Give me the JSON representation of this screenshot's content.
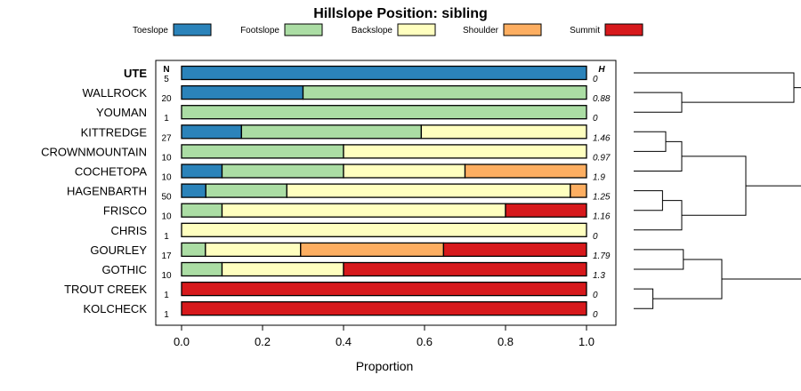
{
  "chart_data": {
    "type": "bar",
    "orientation": "horizontal",
    "stacked": true,
    "title": "Hillslope Position: sibling",
    "xlabel": "Proportion",
    "xlim": [
      0,
      1
    ],
    "x_ticks": [
      "0.0",
      "0.2",
      "0.4",
      "0.6",
      "0.8",
      "1.0"
    ],
    "n_header": "N",
    "h_header": "H",
    "legend_position": "top",
    "series": [
      {
        "name": "Toeslope",
        "color": "#2B83BA"
      },
      {
        "name": "Footslope",
        "color": "#ABDDA4"
      },
      {
        "name": "Backslope",
        "color": "#FFFFBF"
      },
      {
        "name": "Shoulder",
        "color": "#FDAE61"
      },
      {
        "name": "Summit",
        "color": "#D7191C"
      }
    ],
    "rows": [
      {
        "label": "UTE",
        "bold": true,
        "n": "5",
        "h": "0",
        "values": [
          1.0,
          0,
          0,
          0,
          0
        ]
      },
      {
        "label": "WALLROCK",
        "n": "20",
        "h": "0.88",
        "values": [
          0.3,
          0.7,
          0,
          0,
          0
        ]
      },
      {
        "label": "YOUMAN",
        "n": "1",
        "h": "0",
        "values": [
          0,
          1.0,
          0,
          0,
          0
        ]
      },
      {
        "label": "KITTREDGE",
        "n": "27",
        "h": "1.46",
        "values": [
          0.148,
          0.444,
          0.408,
          0,
          0
        ]
      },
      {
        "label": "CROWNMOUNTAIN",
        "n": "10",
        "h": "0.97",
        "values": [
          0,
          0.4,
          0.6,
          0,
          0
        ]
      },
      {
        "label": "COCHETOPA",
        "n": "10",
        "h": "1.9",
        "values": [
          0.1,
          0.3,
          0.3,
          0.3,
          0
        ]
      },
      {
        "label": "HAGENBARTH",
        "n": "50",
        "h": "1.25",
        "values": [
          0.06,
          0.2,
          0.7,
          0.04,
          0
        ]
      },
      {
        "label": "FRISCO",
        "n": "10",
        "h": "1.16",
        "values": [
          0,
          0.1,
          0.7,
          0,
          0.2
        ]
      },
      {
        "label": "CHRIS",
        "n": "1",
        "h": "0",
        "values": [
          0,
          0,
          1.0,
          0,
          0
        ]
      },
      {
        "label": "GOURLEY",
        "n": "17",
        "h": "1.79",
        "values": [
          0,
          0.059,
          0.235,
          0.353,
          0.353
        ]
      },
      {
        "label": "GOTHIC",
        "n": "10",
        "h": "1.3",
        "values": [
          0,
          0.1,
          0.3,
          0,
          0.6
        ]
      },
      {
        "label": "TROUT CREEK",
        "n": "1",
        "h": "0",
        "values": [
          0,
          0,
          0,
          0,
          1.0
        ]
      },
      {
        "label": "KOLCHECK",
        "n": "1",
        "h": "0",
        "values": [
          0,
          0,
          0,
          0,
          1.0
        ]
      }
    ],
    "dendrogram": [
      {
        "a": 11,
        "b": 12,
        "height": 0.12
      },
      {
        "a": 6,
        "b": 7,
        "height": 0.18
      },
      {
        "a": 3,
        "b": 4,
        "height": 0.2
      },
      {
        "a": "n2",
        "b": 5,
        "height": 0.3
      },
      {
        "a": "n1",
        "b": 8,
        "height": 0.3
      },
      {
        "a": 1,
        "b": 2,
        "height": 0.3
      },
      {
        "a": 9,
        "b": 10,
        "height": 0.31
      },
      {
        "a": "n0",
        "b": "n6",
        "height": 0.55
      },
      {
        "a": "n3",
        "b": "n4",
        "height": 0.7
      },
      {
        "a": 0,
        "b": "n5",
        "height": 1.0
      },
      {
        "a": "n9",
        "b": "n8",
        "height": 1.07
      },
      {
        "a": "n10",
        "b": "n7",
        "height": 1.1
      }
    ]
  }
}
